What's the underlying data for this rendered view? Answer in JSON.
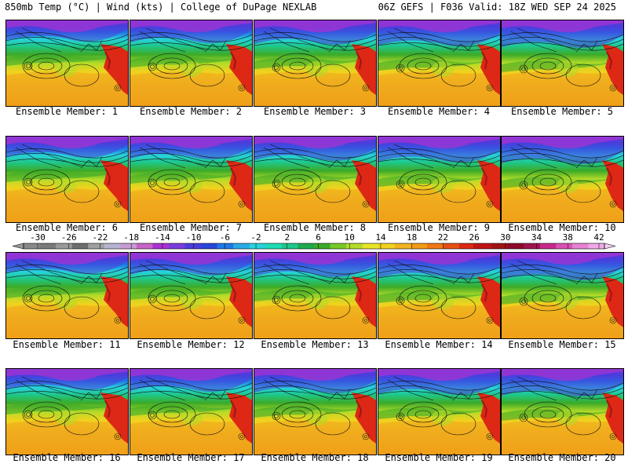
{
  "header": {
    "left": "850mb Temp (°C) | Wind (kts) | College of DuPage NEXLAB",
    "right": "06Z GEFS | F036 Valid: 18Z WED SEP 24 2025"
  },
  "member_label_prefix": "Ensemble Member: ",
  "members": [
    "1",
    "2",
    "3",
    "4",
    "5",
    "6",
    "7",
    "8",
    "9",
    "10",
    "11",
    "12",
    "13",
    "14",
    "15",
    "16",
    "17",
    "18",
    "19",
    "20"
  ],
  "colorbar": {
    "ticks": [
      "-30",
      "-26",
      "-22",
      "-18",
      "-14",
      "-10",
      "-6",
      "-2",
      "2",
      "6",
      "10",
      "14",
      "18",
      "22",
      "26",
      "30",
      "34",
      "38",
      "42"
    ],
    "colors": [
      "#8a8a8a",
      "#7a7a7a",
      "#9a9a9a",
      "#6e6e6e",
      "#a0a0a0",
      "#b4b4d2",
      "#c89bd2",
      "#c864c8",
      "#aa32d2",
      "#7a3cdc",
      "#4b3cdc",
      "#2846dc",
      "#1e78e6",
      "#28aae6",
      "#28d2dc",
      "#1edcb4",
      "#1ec88c",
      "#1eaa50",
      "#3caa28",
      "#78c828",
      "#b4dc28",
      "#e6e628",
      "#f0d21e",
      "#f0b41e",
      "#f09b14",
      "#f07814",
      "#e65014",
      "#dc2814",
      "#be1414",
      "#a01414",
      "#8c0a28",
      "#a01450",
      "#c8288c",
      "#dc50b4",
      "#e682d2",
      "#eeaae6"
    ]
  }
}
